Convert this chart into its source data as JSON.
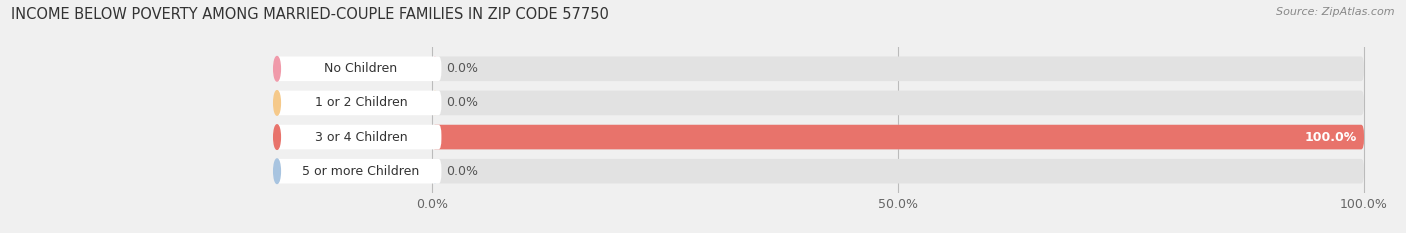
{
  "title": "INCOME BELOW POVERTY AMONG MARRIED-COUPLE FAMILIES IN ZIP CODE 57750",
  "source": "Source: ZipAtlas.com",
  "categories": [
    "No Children",
    "1 or 2 Children",
    "3 or 4 Children",
    "5 or more Children"
  ],
  "values": [
    0.0,
    0.0,
    100.0,
    0.0
  ],
  "bar_colors": [
    "#f09aaa",
    "#f5c98a",
    "#e8736b",
    "#a8c4e0"
  ],
  "value_labels": [
    "0.0%",
    "0.0%",
    "100.0%",
    "0.0%"
  ],
  "xticks": [
    0.0,
    50.0,
    100.0
  ],
  "xticklabels": [
    "0.0%",
    "50.0%",
    "100.0%"
  ],
  "background_color": "#f0f0f0",
  "bar_background_color": "#e2e2e2",
  "title_fontsize": 10.5,
  "source_fontsize": 8,
  "tick_fontsize": 9,
  "label_fontsize": 9
}
